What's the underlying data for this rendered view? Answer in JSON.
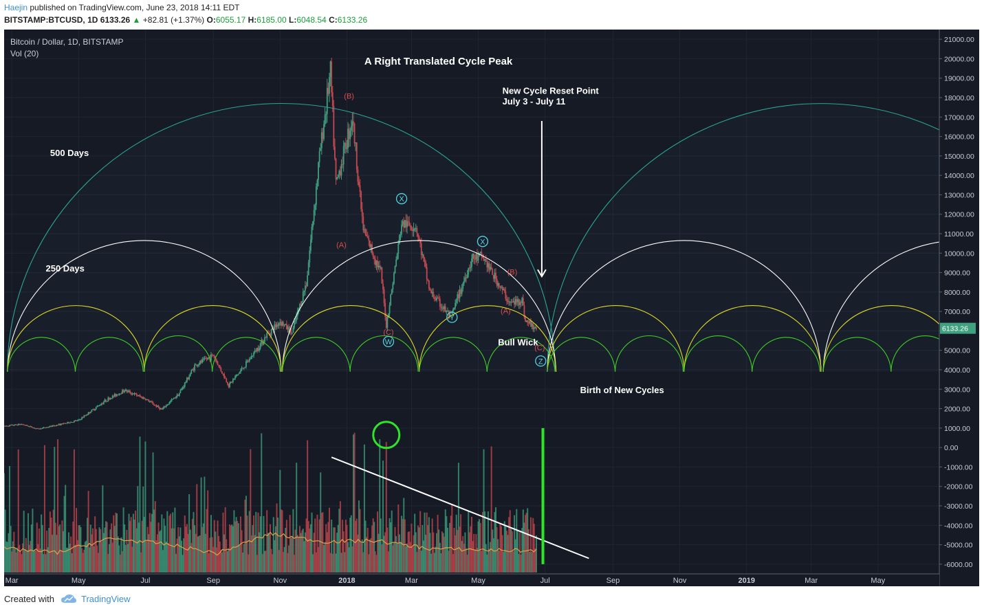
{
  "header": {
    "author": "Haejin",
    "published": "published on TradingView.com, June 23, 2018 14:11 EDT",
    "symbol": "BITSTAMP:BTCUSD, 1D",
    "last": "6133.26",
    "change_arrow": "▲",
    "change": "+82.81 (+1.37%)",
    "o_label": "O:",
    "o_value": "6055.17",
    "h_label": "H:",
    "h_value": "6185.00",
    "l_label": "L:",
    "l_value": "6048.54",
    "c_label": "C:",
    "c_value": "6133.26"
  },
  "footer": {
    "created_with": "Created with",
    "brand": "TradingView"
  },
  "colors": {
    "background": "#151a24",
    "up_candle": "#3fa17f",
    "down_candle": "#c8474f",
    "cycle_500": "#2aa595",
    "cycle_250": "#ffffff",
    "cycle_125": "#e0dc26",
    "cycle_62": "#3fd125",
    "volume_ma": "#e3a04a",
    "price_badge": "#3fa17f",
    "wave_label_red": "#d94d4d",
    "wave_label_cyan": "#54d3e2"
  },
  "chart_data": {
    "type": "candlestick",
    "title": "Bitcoin / Dollar, 1D, BITSTAMP",
    "indicator": "Vol (20)",
    "price_badge": "6133.26",
    "y_ticks": [
      "21000.00",
      "20000.00",
      "19000.00",
      "18000.00",
      "17000.00",
      "16000.00",
      "15000.00",
      "14000.00",
      "13000.00",
      "12000.00",
      "11000.00",
      "10000.00",
      "9000.00",
      "8000.00",
      "7000.00",
      "6000.00",
      "5000.00",
      "4000.00",
      "3000.00",
      "2000.00",
      "1000.00",
      "0.00",
      "-1000.00",
      "-2000.00",
      "-3000.00",
      "-4000.00",
      "-5000.00",
      "-6000.00"
    ],
    "y_tick_values": [
      21000,
      20000,
      19000,
      18000,
      17000,
      16000,
      15000,
      14000,
      13000,
      12000,
      11000,
      10000,
      9000,
      8000,
      7000,
      6000,
      5000,
      4000,
      3000,
      2000,
      1000,
      0,
      -1000,
      -2000,
      -3000,
      -4000,
      -5000,
      -6000
    ],
    "x_ticks": [
      {
        "label": "Mar",
        "date": "2017-03-01",
        "bold": false
      },
      {
        "label": "May",
        "date": "2017-05-01",
        "bold": false
      },
      {
        "label": "Jul",
        "date": "2017-07-01",
        "bold": false
      },
      {
        "label": "Sep",
        "date": "2017-09-01",
        "bold": false
      },
      {
        "label": "Nov",
        "date": "2017-11-01",
        "bold": false
      },
      {
        "label": "2018",
        "date": "2018-01-01",
        "bold": true
      },
      {
        "label": "Mar",
        "date": "2018-03-01",
        "bold": false
      },
      {
        "label": "May",
        "date": "2018-05-01",
        "bold": false
      },
      {
        "label": "Jul",
        "date": "2018-07-01",
        "bold": false
      },
      {
        "label": "Sep",
        "date": "2018-09-01",
        "bold": false
      },
      {
        "label": "Nov",
        "date": "2018-11-01",
        "bold": false
      },
      {
        "label": "2019",
        "date": "2019-01-01",
        "bold": true
      },
      {
        "label": "Mar",
        "date": "2019-03-01",
        "bold": false
      },
      {
        "label": "May",
        "date": "2019-05-01",
        "bold": false
      }
    ],
    "x_range": [
      "2017-02-22",
      "2019-06-26"
    ],
    "y_range": [
      -6500,
      21500
    ],
    "price_path": [
      [
        "2017-02-22",
        1100
      ],
      [
        "2017-03-10",
        1200
      ],
      [
        "2017-03-25",
        950
      ],
      [
        "2017-04-15",
        1200
      ],
      [
        "2017-05-01",
        1400
      ],
      [
        "2017-05-25",
        2400
      ],
      [
        "2017-06-12",
        2950
      ],
      [
        "2017-07-01",
        2500
      ],
      [
        "2017-07-16",
        1950
      ],
      [
        "2017-08-01",
        2800
      ],
      [
        "2017-08-15",
        4200
      ],
      [
        "2017-09-01",
        4750
      ],
      [
        "2017-09-15",
        3200
      ],
      [
        "2017-10-01",
        4300
      ],
      [
        "2017-10-20",
        5800
      ],
      [
        "2017-11-01",
        6500
      ],
      [
        "2017-11-12",
        5900
      ],
      [
        "2017-11-25",
        8500
      ],
      [
        "2017-12-07",
        15000
      ],
      [
        "2017-12-17",
        19300
      ],
      [
        "2017-12-22",
        13500
      ],
      [
        "2018-01-06",
        17000
      ],
      [
        "2018-01-16",
        11200
      ],
      [
        "2018-02-01",
        9000
      ],
      [
        "2018-02-06",
        6300
      ],
      [
        "2018-02-20",
        11500
      ],
      [
        "2018-03-05",
        11400
      ],
      [
        "2018-03-18",
        8000
      ],
      [
        "2018-04-06",
        6700
      ],
      [
        "2018-04-25",
        9700
      ],
      [
        "2018-05-05",
        9800
      ],
      [
        "2018-05-30",
        7400
      ],
      [
        "2018-06-10",
        7600
      ],
      [
        "2018-06-13",
        6500
      ],
      [
        "2018-06-23",
        6133
      ]
    ],
    "volume_range": [
      0,
      30000
    ],
    "volume_ma_values": [
      5500,
      4600,
      7800,
      6600,
      4400,
      8900,
      7100,
      7300,
      5500,
      5200,
      5000
    ],
    "cycles": [
      {
        "name": "500 Days",
        "days": 500,
        "starts": [
          "2017-02-25",
          "2018-07-03"
        ],
        "apex_price": 17700
      },
      {
        "name": "250 Days",
        "days": 250,
        "starts": [
          "2017-02-25",
          "2017-11-03",
          "2018-07-03",
          "2019-03-12"
        ],
        "apex_price": 10800
      },
      {
        "days": 125,
        "starts": [
          "2017-02-25",
          "2017-06-30",
          "2017-11-03",
          "2018-03-08",
          "2018-07-03",
          "2018-11-05",
          "2019-03-12"
        ],
        "apex_price": 7300
      },
      {
        "days": 62,
        "starts": [
          "2017-02-25",
          "2017-04-28",
          "2017-06-30",
          "2017-08-31",
          "2017-11-03",
          "2018-01-04",
          "2018-03-08",
          "2018-05-09",
          "2018-07-03",
          "2018-09-03",
          "2018-11-05",
          "2019-01-06",
          "2019-03-12",
          "2019-05-13"
        ],
        "apex_price": 5750
      }
    ],
    "cycle_base_price": 3900,
    "annotations": [
      {
        "text": "A Right Translated Cycle Peak",
        "date": "2018-01-17",
        "price": 19700,
        "color": "#ffffff",
        "bold": true
      },
      {
        "text": "New Cycle Reset Point",
        "date": "2018-05-23",
        "price": 18200,
        "color": "#ffffff",
        "bold": true
      },
      {
        "text": "July 3 - July 11",
        "date": "2018-05-23",
        "price": 17650,
        "color": "#ffffff",
        "bold": true
      },
      {
        "text": "500 Days",
        "date": "2017-04-05",
        "price": 15000,
        "color": "#ffffff",
        "bold": true
      },
      {
        "text": "250 Days",
        "date": "2017-04-01",
        "price": 9050,
        "color": "#ffffff",
        "bold": true
      },
      {
        "text": "Bull Wick",
        "date": "2018-05-19",
        "price": 5250,
        "color": "#ffffff",
        "bold": true
      },
      {
        "text": "Birth of New Cycles",
        "date": "2018-08-02",
        "price": 2800,
        "color": "#ffffff",
        "bold": true
      }
    ],
    "wave_labels": [
      {
        "text": "(B)",
        "date": "2018-01-03",
        "price": 17950,
        "style": "red"
      },
      {
        "text": "(A)",
        "date": "2017-12-27",
        "price": 10300,
        "style": "red"
      },
      {
        "text": "(C)",
        "date": "2018-02-08",
        "price": 5800,
        "style": "red"
      },
      {
        "text": "W",
        "date": "2018-02-08",
        "price": 5450,
        "style": "circle"
      },
      {
        "text": "X",
        "date": "2018-02-20",
        "price": 12800,
        "style": "circle"
      },
      {
        "text": "Y",
        "date": "2018-04-07",
        "price": 6700,
        "style": "circle"
      },
      {
        "text": "X",
        "date": "2018-05-05",
        "price": 10600,
        "style": "circle"
      },
      {
        "text": "(B)",
        "date": "2018-06-01",
        "price": 8900,
        "style": "red"
      },
      {
        "text": "(A)",
        "date": "2018-05-26",
        "price": 6900,
        "style": "red"
      },
      {
        "text": "(C)",
        "date": "2018-06-26",
        "price": 5000,
        "style": "red"
      },
      {
        "text": "Z",
        "date": "2018-06-27",
        "price": 4450,
        "style": "circle"
      }
    ],
    "reset_arrow": {
      "date": "2018-06-28",
      "from_price": 16800,
      "to_price": 8800
    },
    "volume_spike_circle": {
      "date": "2018-02-06",
      "price": 650
    },
    "trendline": {
      "from": [
        "2017-12-18",
        -500
      ],
      "to": [
        "2018-08-10",
        -5700
      ]
    },
    "green_bar": {
      "date": "2018-06-29",
      "from_price": 1000,
      "to_price": -6000
    }
  }
}
